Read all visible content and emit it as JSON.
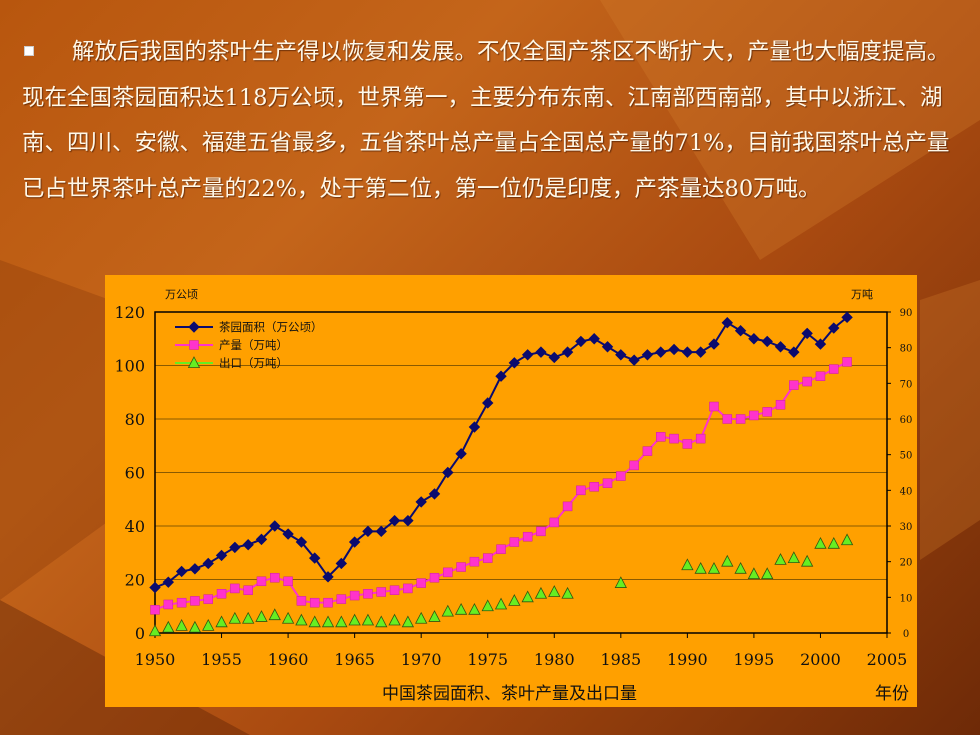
{
  "slide": {
    "bullet_text": "解放后我国的茶叶生产得以恢复和发展。不仅全国产茶区不断扩大，产量也大幅度提高。现在全国茶园面积达118万公顷，世界第一，主要分布东南、江南部西南部，其中以浙江、湖南、四川、安徽、福建五省最多，五省茶叶总产量占全国总产量的71%，目前我国茶叶总产量已占世界茶叶总产量的22%，处于第二位，第一位仍是印度，产茶量达80万吨。"
  },
  "colors": {
    "area": "#0b0b6e",
    "production": "#ff33cc",
    "export": "#66ee22",
    "plot_bg": "#ffa000",
    "gridline": "#8a5a00"
  },
  "chart_data": {
    "type": "line",
    "title": "中国茶园面积、茶叶产量及出口量",
    "xlabel": "年份",
    "ylabel_left": "万公顷",
    "ylabel_right": "万吨",
    "xlim": [
      1950,
      2005
    ],
    "ylim_left": [
      0,
      120
    ],
    "ylim_right": [
      0,
      90
    ],
    "x_ticks": [
      1950,
      1955,
      1960,
      1965,
      1970,
      1975,
      1980,
      1985,
      1990,
      1995,
      2000,
      2005
    ],
    "y_ticks_left": [
      0,
      20,
      40,
      60,
      80,
      100,
      120
    ],
    "y_ticks_right": [
      0,
      10,
      20,
      30,
      40,
      50,
      60,
      70,
      80,
      90
    ],
    "legend_position": "top-left",
    "series": [
      {
        "name": "茶园面积（万公顷）",
        "axis": "left",
        "marker": "diamond",
        "x": [
          1950,
          1951,
          1952,
          1953,
          1954,
          1955,
          1956,
          1957,
          1958,
          1959,
          1960,
          1961,
          1962,
          1963,
          1964,
          1965,
          1966,
          1967,
          1968,
          1969,
          1970,
          1971,
          1972,
          1973,
          1974,
          1975,
          1976,
          1977,
          1978,
          1979,
          1980,
          1981,
          1982,
          1983,
          1984,
          1985,
          1986,
          1987,
          1988,
          1989,
          1990,
          1991,
          1992,
          1993,
          1994,
          1995,
          1996,
          1997,
          1998,
          1999,
          2000,
          2001,
          2002
        ],
        "values": [
          17,
          19,
          23,
          24,
          26,
          29,
          32,
          33,
          35,
          40,
          37,
          34,
          28,
          21,
          26,
          34,
          38,
          38,
          42,
          42,
          49,
          52,
          60,
          67,
          77,
          86,
          96,
          101,
          104,
          105,
          103,
          105,
          109,
          110,
          107,
          104,
          102,
          104,
          105,
          106,
          105,
          105,
          108,
          116,
          113,
          110,
          109,
          107,
          105,
          112,
          108,
          114,
          118
        ]
      },
      {
        "name": "产量（万吨）",
        "axis": "right",
        "marker": "square",
        "x": [
          1950,
          1951,
          1952,
          1953,
          1954,
          1955,
          1956,
          1957,
          1958,
          1959,
          1960,
          1961,
          1962,
          1963,
          1964,
          1965,
          1966,
          1967,
          1968,
          1969,
          1970,
          1971,
          1972,
          1973,
          1974,
          1975,
          1976,
          1977,
          1978,
          1979,
          1980,
          1981,
          1982,
          1983,
          1984,
          1985,
          1986,
          1987,
          1988,
          1989,
          1990,
          1991,
          1992,
          1993,
          1994,
          1995,
          1996,
          1997,
          1998,
          1999,
          2000,
          2001,
          2002
        ],
        "values": [
          6.5,
          8,
          8.5,
          9,
          9.5,
          11,
          12.5,
          12,
          14.5,
          15.5,
          14.5,
          9,
          8.5,
          8.5,
          9.5,
          10.5,
          11,
          11.5,
          12,
          12.5,
          14,
          15.5,
          17,
          18.5,
          20,
          21,
          23.5,
          25.5,
          27,
          28.5,
          31,
          35.5,
          40,
          41,
          42,
          44,
          47,
          51,
          55,
          54.5,
          53,
          54.5,
          63.5,
          60,
          60,
          61,
          62,
          64,
          69.5,
          70.5,
          72,
          74,
          76
        ]
      },
      {
        "name": "出口（万吨）",
        "axis": "right",
        "marker": "triangle",
        "x": [
          1950,
          1951,
          1952,
          1953,
          1954,
          1955,
          1956,
          1957,
          1958,
          1959,
          1960,
          1961,
          1962,
          1963,
          1964,
          1965,
          1966,
          1967,
          1968,
          1969,
          1970,
          1971,
          1972,
          1973,
          1974,
          1975,
          1976,
          1977,
          1978,
          1979,
          1980,
          1981,
          1985,
          1990,
          1991,
          1992,
          1993,
          1994,
          1995,
          1996,
          1997,
          1998,
          1999,
          2000,
          2001,
          2002
        ],
        "values": [
          0.5,
          1.5,
          2,
          1.5,
          2,
          3,
          4,
          4,
          4.5,
          5,
          4,
          3.5,
          3,
          3,
          3,
          3.5,
          3.5,
          3,
          3.5,
          3,
          4,
          4.5,
          6,
          6.5,
          6.5,
          7.5,
          8,
          9,
          10,
          11,
          11.5,
          11,
          14,
          19,
          18,
          18,
          20,
          18,
          16.5,
          16.5,
          20.5,
          21,
          20,
          25,
          25,
          26
        ]
      }
    ]
  }
}
